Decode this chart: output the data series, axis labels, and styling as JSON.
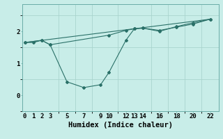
{
  "xlabel": "Humidex (Indice chaleur)",
  "bg_color": "#c8ede8",
  "grid_color": "#aad4ce",
  "line_color": "#2a7068",
  "line1": {
    "x": [
      0,
      1,
      2,
      3,
      5,
      7,
      9,
      10,
      12,
      13,
      14,
      16,
      18,
      20,
      22
    ],
    "y": [
      1.65,
      1.65,
      1.72,
      1.58,
      0.42,
      0.24,
      0.33,
      0.72,
      1.72,
      2.08,
      2.1,
      2.0,
      2.15,
      2.27,
      2.38
    ]
  },
  "line2": {
    "x": [
      0,
      2,
      3,
      10,
      12,
      13,
      14,
      16,
      18,
      20,
      22
    ],
    "y": [
      1.65,
      1.72,
      1.58,
      1.88,
      2.03,
      2.08,
      2.1,
      2.03,
      2.13,
      2.23,
      2.38
    ]
  },
  "line3": {
    "x": [
      0,
      22
    ],
    "y": [
      1.65,
      2.38
    ]
  },
  "xlim": [
    -0.3,
    23.0
  ],
  "ylim": [
    -0.25,
    2.85
  ],
  "xticks": [
    0,
    1,
    2,
    3,
    5,
    7,
    9,
    10,
    12,
    13,
    14,
    16,
    18,
    20,
    22
  ],
  "yticks": [
    0,
    1,
    2
  ],
  "tick_fontsize": 6.5,
  "label_fontsize": 7.5
}
